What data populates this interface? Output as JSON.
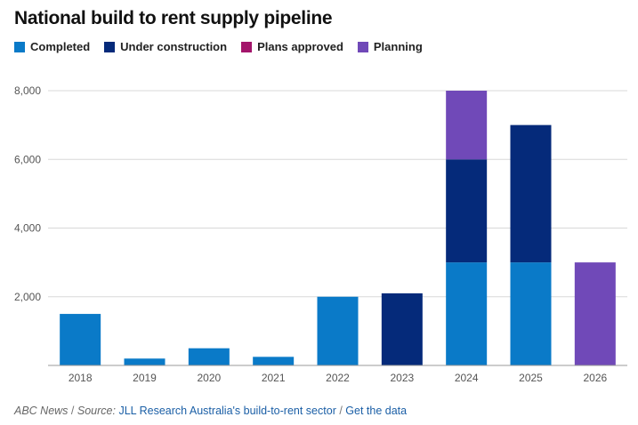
{
  "title": "National build to rent supply pipeline",
  "legend": [
    {
      "label": "Completed",
      "color": "#0a7ac8"
    },
    {
      "label": "Under construction",
      "color": "#052a7a"
    },
    {
      "label": "Plans approved",
      "color": "#a3156b"
    },
    {
      "label": "Planning",
      "color": "#7049b8"
    }
  ],
  "footer": {
    "outlet": "ABC News",
    "source_prefix": "Source:",
    "source_link": "JLL Research Australia's build-to-rent sector",
    "data_link": "Get the data"
  },
  "chart_data": {
    "type": "bar",
    "stacked": true,
    "categories": [
      "2018",
      "2019",
      "2020",
      "2021",
      "2022",
      "2023",
      "2024",
      "2025",
      "2026"
    ],
    "series": [
      {
        "name": "Completed",
        "color": "#0a7ac8",
        "values": [
          1500,
          200,
          500,
          250,
          2000,
          0,
          3000,
          3000,
          0
        ]
      },
      {
        "name": "Under construction",
        "color": "#052a7a",
        "values": [
          0,
          0,
          0,
          0,
          0,
          2100,
          3000,
          4000,
          0
        ]
      },
      {
        "name": "Plans approved",
        "color": "#a3156b",
        "values": [
          0,
          0,
          0,
          0,
          0,
          0,
          0,
          0,
          0
        ]
      },
      {
        "name": "Planning",
        "color": "#7049b8",
        "values": [
          0,
          0,
          0,
          0,
          0,
          0,
          2000,
          0,
          3000
        ]
      }
    ],
    "yticks": [
      "2,000",
      "4,000",
      "6,000",
      "8,000"
    ],
    "ytick_values": [
      2000,
      4000,
      6000,
      8000
    ],
    "ylim": [
      0,
      8000
    ],
    "xlabel": "",
    "ylabel": "",
    "grid": true
  }
}
